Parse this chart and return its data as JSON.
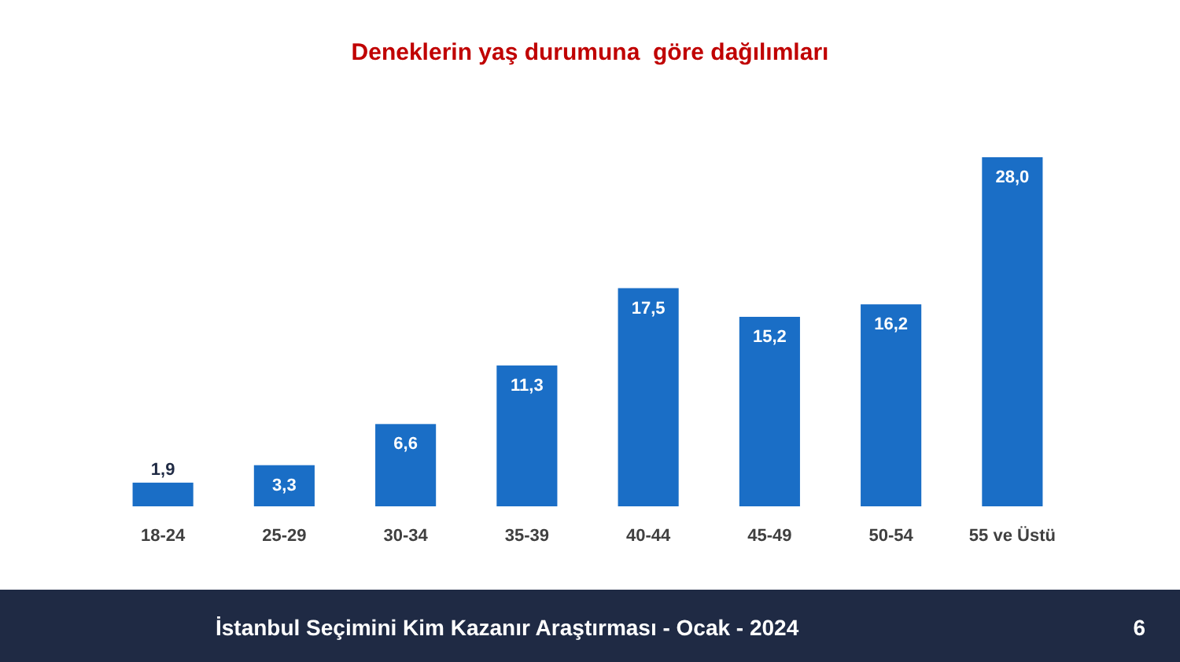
{
  "chart_data": {
    "type": "bar",
    "title": "Deneklerin yaş durumuna  göre dağılımları",
    "categories": [
      "18-24",
      "25-29",
      "30-34",
      "35-39",
      "40-44",
      "45-49",
      "50-54",
      "55 ve Üstü"
    ],
    "values": [
      1.9,
      3.3,
      6.6,
      11.3,
      17.5,
      15.2,
      16.2,
      28.0
    ],
    "value_labels": [
      "1,9",
      "3,3",
      "6,6",
      "11,3",
      "17,5",
      "15,2",
      "16,2",
      "28,0"
    ],
    "color": "#1a6ec6",
    "annotations": [
      "İstanbul Seçimini Kim Kazanır Araştırması - Ocak - 2024",
      "6"
    ]
  }
}
